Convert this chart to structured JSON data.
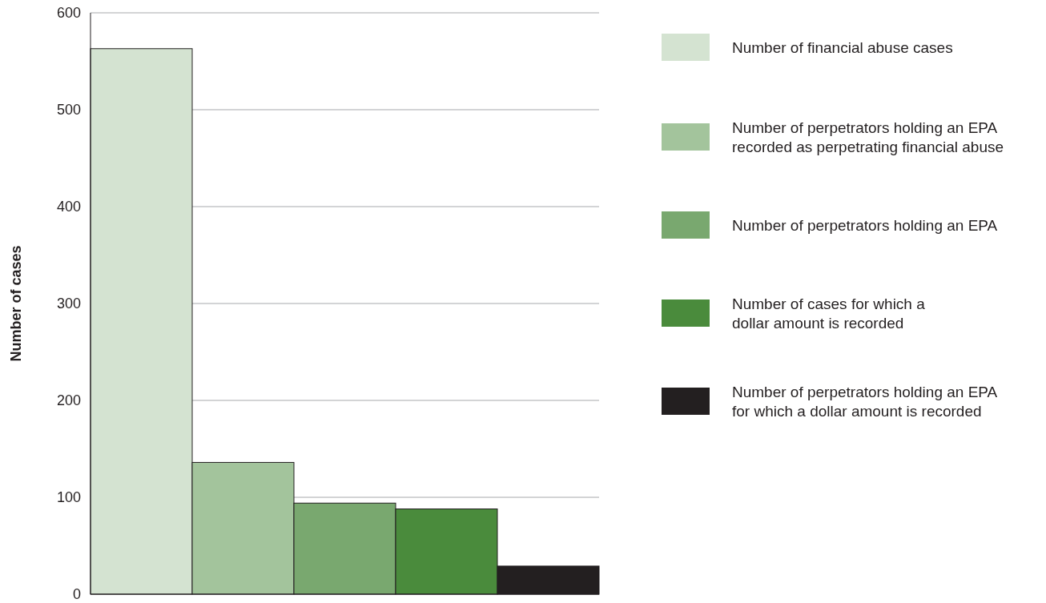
{
  "chart_data": {
    "type": "bar",
    "ylabel": "Number of cases",
    "categories": [
      null,
      null,
      null,
      null,
      null
    ],
    "series": [
      {
        "name": "Number of financial abuse cases",
        "color": "#d4e3d1",
        "values": [
          563,
          null,
          null,
          null,
          null
        ]
      },
      {
        "name": "Number of perpetrators holding an EPA\nrecorded as perpetrating financial abuse",
        "color": "#a3c49c",
        "values": [
          null,
          136,
          null,
          null,
          null
        ]
      },
      {
        "name": "Number of perpetrators holding an EPA",
        "color": "#79a86f",
        "values": [
          null,
          null,
          94,
          null,
          null
        ]
      },
      {
        "name": "Number of cases for which a\ndollar amount is recorded",
        "color": "#4a8b3c",
        "values": [
          null,
          null,
          null,
          88,
          null
        ]
      },
      {
        "name": "Number of perpetrators holding an EPA\nfor which a dollar amount is recorded",
        "color": "#231f20",
        "values": [
          null,
          null,
          null,
          null,
          29
        ]
      }
    ],
    "ylim": [
      0,
      600
    ],
    "yticks": [
      0,
      100,
      200,
      300,
      400,
      500,
      600
    ],
    "grid": "y",
    "legend": "right"
  }
}
